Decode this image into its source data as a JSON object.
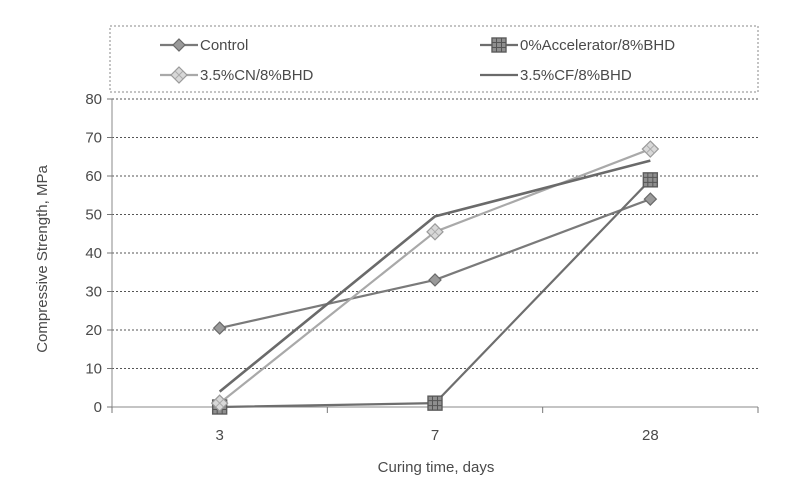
{
  "chart_data": {
    "type": "line",
    "title": "",
    "xlabel": "Curing time, days",
    "ylabel": "Compressive Strength, MPa",
    "categories": [
      "3",
      "7",
      "28"
    ],
    "ylim": [
      0,
      80
    ],
    "yticks": [
      "0",
      "10",
      "20",
      "30",
      "40",
      "50",
      "60",
      "70",
      "80"
    ],
    "grid": "horizontal dotted",
    "legend_position": "top",
    "series": [
      {
        "name": "Control",
        "values": [
          20.5,
          33,
          54
        ],
        "marker": "diamond",
        "color": "#7a7a7a"
      },
      {
        "name": "0%Accelerator/8%BHD",
        "values": [
          0,
          1,
          59
        ],
        "marker": "square",
        "color": "#6e6e6e"
      },
      {
        "name": "3.5%CN/8%BHD",
        "values": [
          1,
          45.5,
          67
        ],
        "marker": "diamond-hatched",
        "color": "#a9a9a9"
      },
      {
        "name": "3.5%CF/8%BHD",
        "values": [
          4,
          49.5,
          64
        ],
        "marker": "none",
        "color": "#6a6a6a"
      }
    ]
  }
}
